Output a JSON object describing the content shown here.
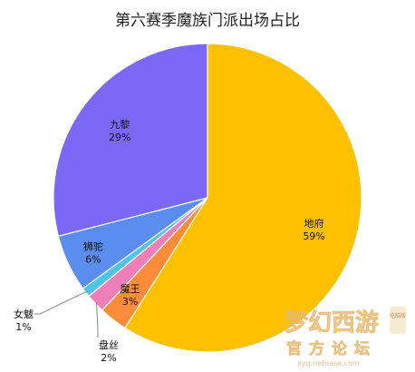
{
  "chart_data": {
    "type": "pie",
    "title": "第六赛季魔族门派出场占比",
    "slices": [
      {
        "name": "地府",
        "value": 59,
        "label": "59%",
        "color": "#FFC000"
      },
      {
        "name": "魔王",
        "value": 3,
        "label": "3%",
        "color": "#FF8C3A"
      },
      {
        "name": "盘丝",
        "value": 2,
        "label": "2%",
        "color": "#F07EB8"
      },
      {
        "name": "女魃",
        "value": 1,
        "label": "1%",
        "color": "#4FC3E8"
      },
      {
        "name": "狮驼",
        "value": 6,
        "label": "6%",
        "color": "#5B8DEF"
      },
      {
        "name": "九黎",
        "value": 29,
        "label": "29%",
        "color": "#7B68F5"
      }
    ],
    "start": "top",
    "direction": "clockwise",
    "legend": "none"
  },
  "watermark": {
    "logo_text": "梦幻西游",
    "badge_text": "电脑版",
    "sub_text": "官方论坛",
    "url_text": "xyq.netease.com"
  }
}
